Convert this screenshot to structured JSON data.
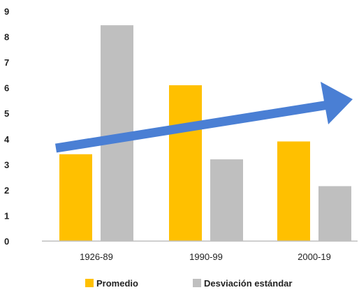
{
  "chart_data": {
    "type": "bar",
    "title": "",
    "xlabel": "",
    "ylabel": "",
    "categories": [
      "1926-89",
      "1990-99",
      "2000-19"
    ],
    "series": [
      {
        "name": "Promedio",
        "values": [
          3.4,
          6.1,
          3.9
        ],
        "color": "#FFC000"
      },
      {
        "name": "Desviación estándar",
        "values": [
          8.45,
          3.2,
          2.15
        ],
        "color": "#BFBFBF"
      }
    ],
    "ylim": [
      0,
      9
    ],
    "yticks": [
      "0",
      "1",
      "2",
      "3",
      "4",
      "5",
      "6",
      "7",
      "8",
      "9"
    ],
    "grid": false,
    "legend": "bottom",
    "annotation": {
      "type": "arrow",
      "direction": "upward trend",
      "color": "#4A7FD4"
    },
    "axis_color": "#BFBFBF"
  }
}
